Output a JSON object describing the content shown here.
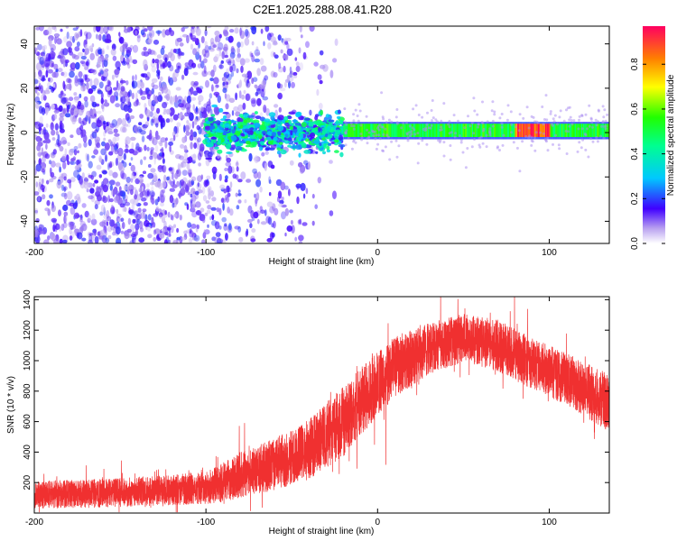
{
  "title": "C2E1.2025.288.08.41.R20",
  "chart_data": [
    {
      "type": "heatmap",
      "xlabel": "Height of straight line (km)",
      "ylabel": "Frequency (Hz)",
      "xlim": [
        -200,
        135
      ],
      "ylim": [
        -50,
        48
      ],
      "xticks": [
        -200,
        -100,
        0,
        100
      ],
      "yticks": [
        -40,
        -20,
        0,
        20,
        40
      ],
      "colorbar": {
        "label": "Normalized spectral amplitude",
        "range": [
          0,
          0.97
        ],
        "ticks": [
          0.0,
          0.2,
          0.4,
          0.6,
          0.8
        ],
        "tick_labels": [
          "0.0",
          "0.2",
          "0.4",
          "0.6",
          "0.8"
        ]
      },
      "features": [
        {
          "name": "broadband scatter",
          "x_range": [
            -200,
            -20
          ],
          "freq_range": [
            -50,
            48
          ],
          "amplitude": 0.15
        },
        {
          "name": "turbulent band",
          "x_range": [
            -100,
            -20
          ],
          "freq_range": [
            -8,
            8
          ],
          "amplitude": 0.45
        },
        {
          "name": "narrow carrier",
          "x_range": [
            -20,
            135
          ],
          "freq_center": 1,
          "freq_width": 3,
          "amplitude": 0.55
        },
        {
          "name": "peak segment",
          "x_range": [
            80,
            100
          ],
          "freq_center": 1,
          "amplitude": 0.95
        }
      ]
    },
    {
      "type": "line",
      "xlabel": "Height of straight line (km)",
      "ylabel": "SNR (10 * v/v)",
      "xlim": [
        -200,
        135
      ],
      "ylim": [
        0,
        1420
      ],
      "xticks": [
        -200,
        -100,
        0,
        100
      ],
      "yticks": [
        200,
        400,
        600,
        800,
        1000,
        1200,
        1400
      ],
      "series_color": "#f03030",
      "envelope": {
        "x": [
          -200,
          -160,
          -120,
          -100,
          -90,
          -80,
          -60,
          -40,
          -20,
          -5,
          10,
          30,
          50,
          70,
          90,
          110,
          135
        ],
        "center": [
          120,
          130,
          150,
          170,
          200,
          250,
          320,
          420,
          600,
          790,
          960,
          1080,
          1150,
          1100,
          980,
          880,
          720
        ],
        "spread": [
          90,
          95,
          100,
          110,
          130,
          150,
          170,
          200,
          230,
          220,
          200,
          170,
          160,
          170,
          170,
          170,
          190
        ]
      }
    }
  ]
}
